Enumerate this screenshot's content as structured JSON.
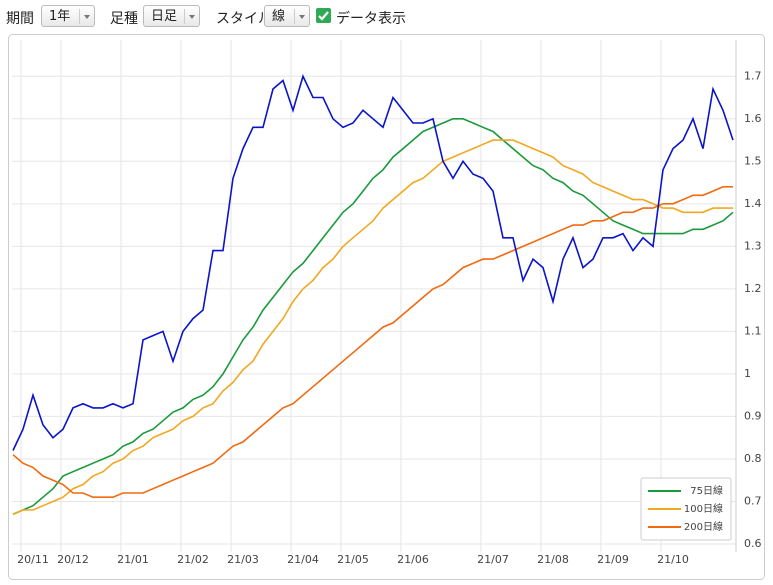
{
  "toolbar": {
    "period_label": "期間",
    "period_value": "1年",
    "bar_label": "足種",
    "bar_value": "日足",
    "style_label": "スタイル",
    "style_value": "線",
    "data_toggle": "データ表示",
    "data_toggle_checked": true
  },
  "chart_data": {
    "type": "line",
    "categories": [
      null,
      null,
      "20/11",
      null,
      null,
      null,
      "20/12",
      null,
      null,
      null,
      null,
      null,
      "21/01",
      null,
      null,
      null,
      null,
      null,
      "21/02",
      null,
      null,
      null,
      null,
      "21/03",
      null,
      null,
      null,
      null,
      null,
      "21/04",
      null,
      null,
      null,
      null,
      "21/05",
      null,
      null,
      null,
      null,
      null,
      "21/06",
      null,
      null,
      null,
      null,
      null,
      null,
      null,
      "21/07",
      null,
      null,
      null,
      null,
      null,
      "21/08",
      null,
      null,
      null,
      null,
      null,
      "21/09",
      null,
      null,
      null,
      null,
      null,
      "21/10",
      null,
      null,
      null,
      null,
      null,
      null
    ],
    "series": [
      {
        "color": "#0a14c8",
        "values": [
          0.82,
          0.87,
          0.95,
          0.88,
          0.85,
          0.87,
          0.92,
          0.93,
          0.92,
          0.92,
          0.93,
          0.92,
          0.93,
          1.08,
          1.09,
          1.1,
          1.03,
          1.1,
          1.13,
          1.15,
          1.29,
          1.29,
          1.46,
          1.53,
          1.58,
          1.58,
          1.67,
          1.69,
          1.62,
          1.7,
          1.65,
          1.65,
          1.6,
          1.58,
          1.59,
          1.62,
          1.6,
          1.58,
          1.65,
          1.62,
          1.59,
          1.59,
          1.6,
          1.5,
          1.46,
          1.5,
          1.47,
          1.46,
          1.43,
          1.32,
          1.32,
          1.22,
          1.27,
          1.25,
          1.17,
          1.27,
          1.32,
          1.25,
          1.27,
          1.32,
          1.32,
          1.33,
          1.29,
          1.32,
          1.3,
          1.48,
          1.53,
          1.55,
          1.6,
          1.53,
          1.67,
          1.62,
          1.55
        ]
      },
      {
        "name": "75日線",
        "color": "#1a9a3c",
        "values": [
          0.67,
          0.68,
          0.69,
          0.71,
          0.73,
          0.76,
          0.77,
          0.78,
          0.79,
          0.8,
          0.81,
          0.83,
          0.84,
          0.86,
          0.87,
          0.89,
          0.91,
          0.92,
          0.94,
          0.95,
          0.97,
          1.0,
          1.04,
          1.08,
          1.11,
          1.15,
          1.18,
          1.21,
          1.24,
          1.26,
          1.29,
          1.32,
          1.35,
          1.38,
          1.4,
          1.43,
          1.46,
          1.48,
          1.51,
          1.53,
          1.55,
          1.57,
          1.58,
          1.59,
          1.6,
          1.6,
          1.59,
          1.58,
          1.57,
          1.55,
          1.53,
          1.51,
          1.49,
          1.48,
          1.46,
          1.45,
          1.43,
          1.42,
          1.4,
          1.38,
          1.36,
          1.35,
          1.34,
          1.33,
          1.33,
          1.33,
          1.33,
          1.33,
          1.34,
          1.34,
          1.35,
          1.36,
          1.38
        ]
      },
      {
        "name": "100日線",
        "color": "#f0a820",
        "values": [
          0.67,
          0.68,
          0.68,
          0.69,
          0.7,
          0.71,
          0.73,
          0.74,
          0.76,
          0.77,
          0.79,
          0.8,
          0.82,
          0.83,
          0.85,
          0.86,
          0.87,
          0.89,
          0.9,
          0.92,
          0.93,
          0.96,
          0.98,
          1.01,
          1.03,
          1.07,
          1.1,
          1.13,
          1.17,
          1.2,
          1.22,
          1.25,
          1.27,
          1.3,
          1.32,
          1.34,
          1.36,
          1.39,
          1.41,
          1.43,
          1.45,
          1.46,
          1.48,
          1.5,
          1.51,
          1.52,
          1.53,
          1.54,
          1.55,
          1.55,
          1.55,
          1.54,
          1.53,
          1.52,
          1.51,
          1.49,
          1.48,
          1.47,
          1.45,
          1.44,
          1.43,
          1.42,
          1.41,
          1.41,
          1.4,
          1.39,
          1.39,
          1.38,
          1.38,
          1.38,
          1.39,
          1.39,
          1.39
        ]
      },
      {
        "name": "200日線",
        "color": "#f06a10",
        "values": [
          0.81,
          0.79,
          0.78,
          0.76,
          0.75,
          0.74,
          0.72,
          0.72,
          0.71,
          0.71,
          0.71,
          0.72,
          0.72,
          0.72,
          0.73,
          0.74,
          0.75,
          0.76,
          0.77,
          0.78,
          0.79,
          0.81,
          0.83,
          0.84,
          0.86,
          0.88,
          0.9,
          0.92,
          0.93,
          0.95,
          0.97,
          0.99,
          1.01,
          1.03,
          1.05,
          1.07,
          1.09,
          1.11,
          1.12,
          1.14,
          1.16,
          1.18,
          1.2,
          1.21,
          1.23,
          1.25,
          1.26,
          1.27,
          1.27,
          1.28,
          1.29,
          1.3,
          1.31,
          1.32,
          1.33,
          1.34,
          1.35,
          1.35,
          1.36,
          1.36,
          1.37,
          1.38,
          1.38,
          1.39,
          1.39,
          1.4,
          1.4,
          1.41,
          1.42,
          1.42,
          1.43,
          1.44,
          1.44
        ]
      }
    ],
    "ylim": [
      0.6,
      1.79
    ],
    "yticks": [
      0.6,
      0.7,
      0.8,
      0.9,
      1,
      1.1,
      1.2,
      1.3,
      1.4,
      1.5,
      1.6,
      1.7
    ],
    "grid": true,
    "legend": "lower right"
  }
}
